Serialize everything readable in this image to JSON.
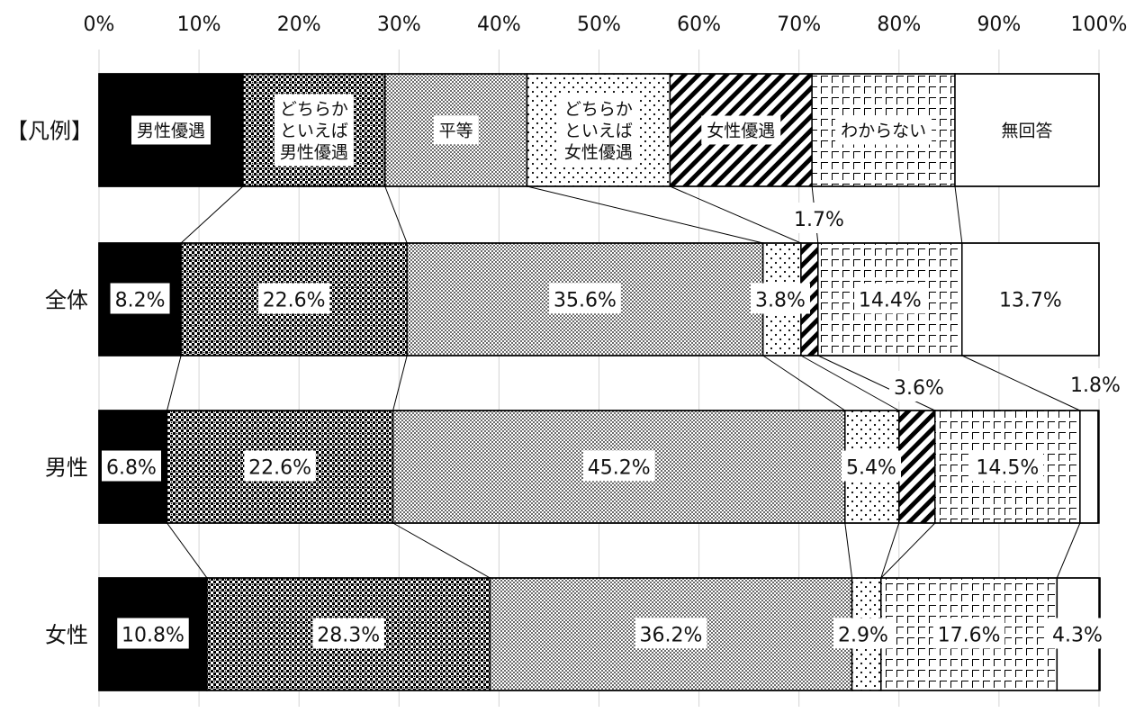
{
  "chart_data": {
    "type": "bar",
    "orientation": "horizontal",
    "stacked": true,
    "percent_axis": true,
    "xlim": [
      0,
      100
    ],
    "x_ticks": [
      "0%",
      "10%",
      "20%",
      "30%",
      "40%",
      "50%",
      "60%",
      "70%",
      "80%",
      "90%",
      "100%"
    ],
    "grid": true,
    "legend": {
      "label": "【凡例】",
      "placement": "top",
      "entries": [
        "男性優遇",
        "どちらか\nといえば\n男性優遇",
        "平等",
        "どちらか\nといえば\n女性優遇",
        "女性優遇",
        "わからない",
        "無回答"
      ]
    },
    "series": [
      {
        "name": "男性優遇",
        "values": [
          8.2,
          6.8,
          10.8
        ],
        "labels": [
          "8.2%",
          "6.8%",
          "10.8%"
        ],
        "color": "#000000",
        "pattern": "solid"
      },
      {
        "name": "どちらかといえば男性優遇",
        "values": [
          22.6,
          22.6,
          28.3
        ],
        "labels": [
          "22.6%",
          "22.6%",
          "28.3%"
        ],
        "color": "#555555",
        "pattern": "dense-check"
      },
      {
        "name": "平等",
        "values": [
          35.6,
          45.2,
          36.2
        ],
        "labels": [
          "35.6%",
          "45.2%",
          "36.2%"
        ],
        "color": "#cccccc",
        "pattern": "fine-dots"
      },
      {
        "name": "どちらかといえば女性優遇",
        "values": [
          3.8,
          5.4,
          2.9
        ],
        "labels": [
          "3.8%",
          "5.4%",
          "2.9%"
        ],
        "color": "#f2f2f2",
        "pattern": "sparse-dots"
      },
      {
        "name": "女性優遇",
        "values": [
          1.7,
          3.6,
          0.0
        ],
        "labels": [
          "1.7%",
          "3.6%",
          ""
        ],
        "color": "#333333",
        "pattern": "diagonal-stripes"
      },
      {
        "name": "わからない",
        "values": [
          14.4,
          14.5,
          17.6
        ],
        "labels": [
          "14.4%",
          "14.5%",
          "17.6%"
        ],
        "color": "#f2f2f2",
        "pattern": "dashed-grid"
      },
      {
        "name": "無回答",
        "values": [
          13.7,
          1.8,
          4.3
        ],
        "labels": [
          "13.7%",
          "1.8%",
          "4.3%"
        ],
        "color": "#ffffff",
        "pattern": "none"
      }
    ],
    "categories": [
      "全体",
      "男性",
      "女性"
    ]
  }
}
